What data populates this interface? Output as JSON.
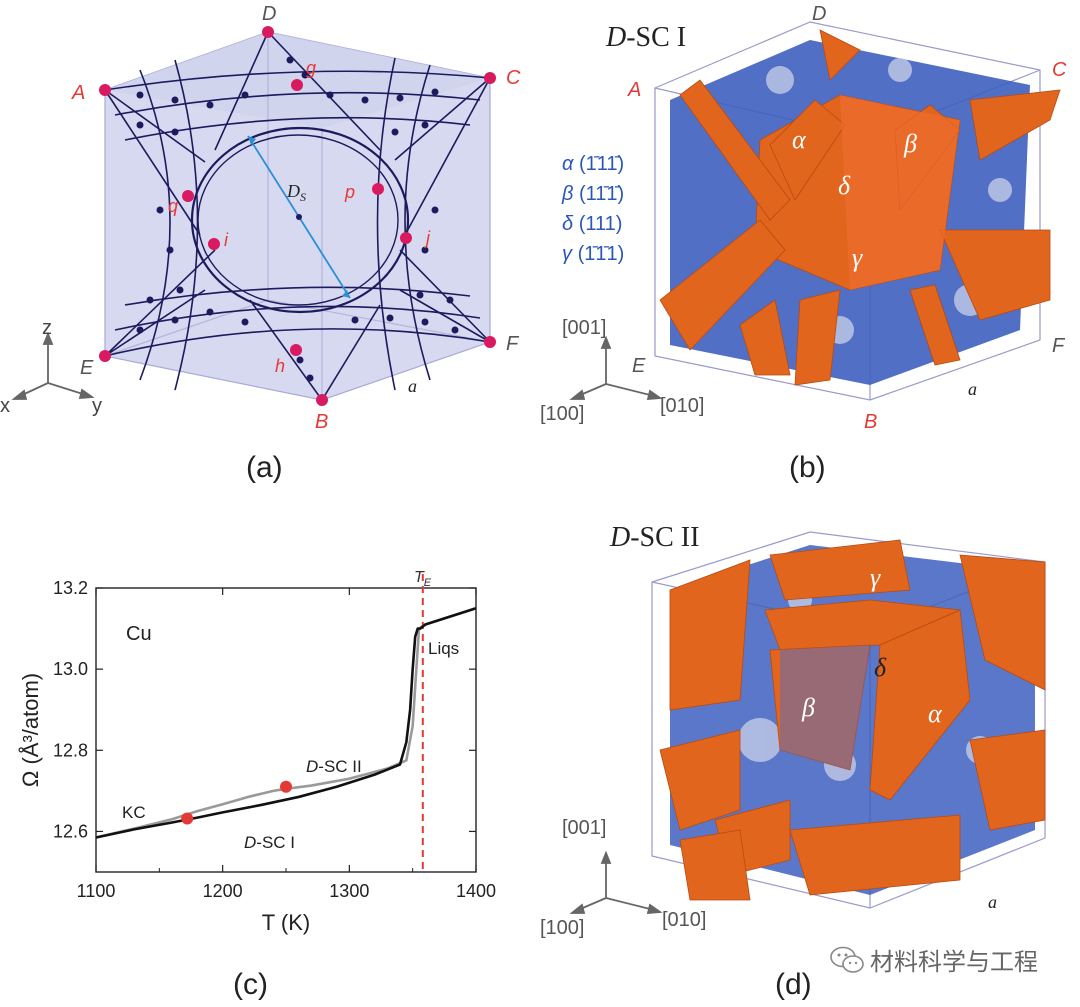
{
  "panels": {
    "a": {
      "caption": "(a)",
      "vertices": {
        "A": "A",
        "B": "B",
        "C": "C",
        "D": "D",
        "E": "E",
        "F": "F"
      },
      "points": {
        "g": "g",
        "i": "i",
        "j": "j",
        "p": "p",
        "q": "q",
        "h": "h"
      },
      "ds_label": "D",
      "ds_sub": "S",
      "edge_label": "a",
      "axes": {
        "x": "x",
        "y": "y",
        "z": "z"
      }
    },
    "b": {
      "caption": "(b)",
      "title_d": "D",
      "title_rest": "-SC I",
      "vertices": {
        "A": "A",
        "B": "B",
        "C": "C",
        "D": "D",
        "E": "E",
        "F": "F"
      },
      "edge_label": "a",
      "planes": [
        {
          "greek": "α",
          "miller": "(1̄11̄)"
        },
        {
          "greek": "β",
          "miller": "(11̄1̄)"
        },
        {
          "greek": "δ",
          "miller": "(111)"
        },
        {
          "greek": "γ",
          "miller": "(1̄1̄1)"
        }
      ],
      "face_labels": {
        "alpha": "α",
        "beta": "β",
        "delta": "δ",
        "gamma": "γ"
      },
      "axes": {
        "z": "[001]",
        "x": "[100]",
        "y": "[010]"
      }
    },
    "c": {
      "caption": "(c)",
      "material": "Cu",
      "te_label": "T",
      "te_sub": "E",
      "liq_label": "Liqs",
      "kc_label": "KC",
      "dsc1_d": "D",
      "dsc1_rest": "-SC I",
      "dsc2_d": "D",
      "dsc2_rest": "-SC II"
    },
    "d": {
      "caption": "(d)",
      "title_d": "D",
      "title_rest": "-SC II",
      "edge_label": "a",
      "face_labels": {
        "gamma": "γ",
        "delta": "δ",
        "beta": "β",
        "alpha": "α"
      },
      "axes": {
        "z": "[001]",
        "x": "[100]",
        "y": "[010]"
      }
    }
  },
  "chart_data": {
    "type": "line",
    "title": "Cu",
    "xlabel": "T (K)",
    "ylabel": "Ω (Å³/atom)",
    "xlim": [
      1100,
      1400
    ],
    "ylim": [
      12.5,
      13.2
    ],
    "xticks": [
      1100,
      1200,
      1300,
      1400
    ],
    "yticks": [
      12.6,
      12.8,
      13.0,
      13.2
    ],
    "te": 1358,
    "series": [
      {
        "name": "D-SC I",
        "color": "#111111",
        "x": [
          1100,
          1130,
          1160,
          1180,
          1200,
          1230,
          1260,
          1290,
          1320,
          1340,
          1345,
          1348,
          1350,
          1352,
          1354,
          1356,
          1360,
          1380,
          1400
        ],
        "y": [
          12.585,
          12.605,
          12.622,
          12.634,
          12.647,
          12.665,
          12.685,
          12.71,
          12.74,
          12.765,
          12.82,
          12.9,
          13.0,
          13.08,
          13.1,
          13.1,
          13.11,
          13.13,
          13.15
        ]
      },
      {
        "name": "D-SC II",
        "color": "#9a9a9a",
        "x": [
          1100,
          1130,
          1160,
          1180,
          1200,
          1220,
          1240,
          1250,
          1270,
          1300,
          1330,
          1345,
          1350,
          1355,
          1360,
          1380,
          1400
        ],
        "y": [
          12.585,
          12.607,
          12.63,
          12.65,
          12.667,
          12.685,
          12.7,
          12.705,
          12.713,
          12.73,
          12.755,
          12.775,
          12.86,
          13.1,
          13.11,
          13.13,
          13.15
        ]
      }
    ],
    "markers": [
      {
        "x": 1172,
        "y": 12.632,
        "color": "#e53935"
      },
      {
        "x": 1250,
        "y": 12.71,
        "color": "#e53935"
      }
    ]
  },
  "watermark": "材料科学与工程"
}
